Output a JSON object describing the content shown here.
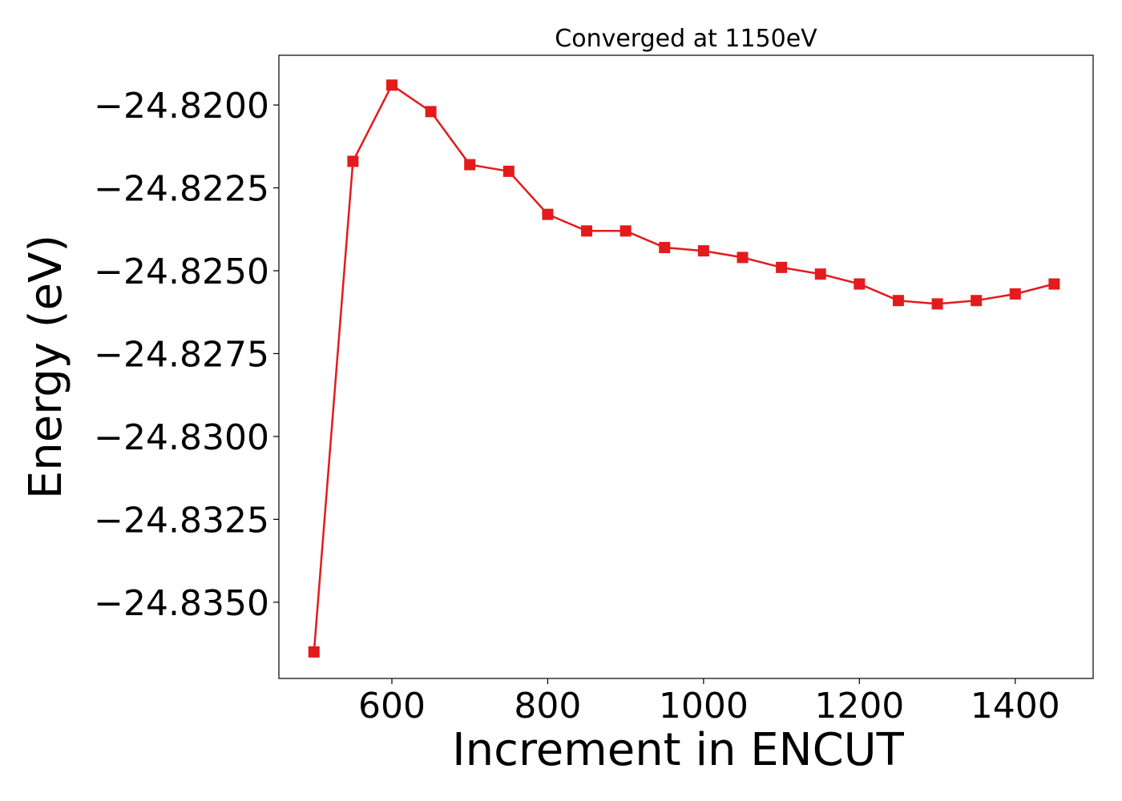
{
  "chart_data": {
    "type": "line",
    "title": "Converged at 1150eV",
    "xlabel": "Increment in ENCUT",
    "ylabel": "Energy (eV)",
    "xlim": [
      455,
      1500
    ],
    "ylim": [
      -24.8373,
      -24.8185
    ],
    "x_ticks": [
      600,
      800,
      1000,
      1200,
      1400
    ],
    "y_ticks": [
      -24.82,
      -24.8225,
      -24.825,
      -24.8275,
      -24.83,
      -24.8325,
      -24.835
    ],
    "x_tick_labels": [
      "600",
      "800",
      "1000",
      "1200",
      "1400"
    ],
    "y_tick_labels": [
      "−24.8200",
      "−24.8225",
      "−24.8250",
      "−24.8275",
      "−24.8300",
      "−24.8325",
      "−24.8350"
    ],
    "grid": false,
    "series": [
      {
        "color": "#e41a1c",
        "marker": "square",
        "x": [
          500,
          550,
          600,
          650,
          700,
          750,
          800,
          850,
          900,
          950,
          1000,
          1050,
          1100,
          1150,
          1200,
          1250,
          1300,
          1350,
          1400,
          1450
        ],
        "y": [
          -24.8365,
          -24.8217,
          -24.8194,
          -24.8202,
          -24.8218,
          -24.822,
          -24.8233,
          -24.8238,
          -24.8238,
          -24.8243,
          -24.8244,
          -24.8246,
          -24.8249,
          -24.8251,
          -24.8254,
          -24.8259,
          -24.826,
          -24.8259,
          -24.8257,
          -24.8254
        ]
      }
    ]
  }
}
